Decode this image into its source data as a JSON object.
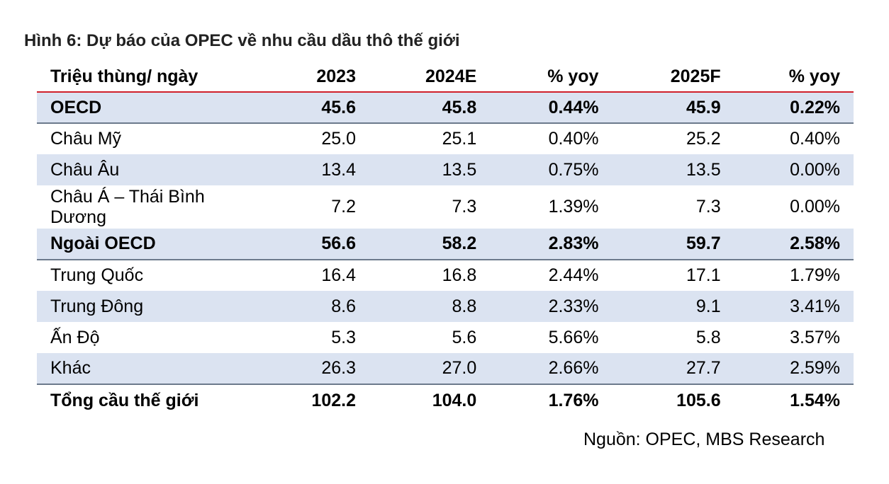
{
  "figure_title": "Hình 6: Dự báo của OPEC về nhu cầu dầu thô thế giới",
  "table": {
    "headers": [
      "Triệu thùng/ ngày",
      "2023",
      "2024E",
      "% yoy",
      "2025F",
      "% yoy"
    ],
    "rows": [
      {
        "label": "OECD",
        "values": [
          "45.6",
          "45.8",
          "0.44%",
          "45.9",
          "0.22%"
        ]
      },
      {
        "label": "Châu Mỹ",
        "values": [
          "25.0",
          "25.1",
          "0.40%",
          "25.2",
          "0.40%"
        ]
      },
      {
        "label": "Châu Âu",
        "values": [
          "13.4",
          "13.5",
          "0.75%",
          "13.5",
          "0.00%"
        ]
      },
      {
        "label_line1": "Châu Á – Thái Bình",
        "label_line2": "Dương",
        "values": [
          "7.2",
          "7.3",
          "1.39%",
          "7.3",
          "0.00%"
        ]
      },
      {
        "label": "Ngoài OECD",
        "values": [
          "56.6",
          "58.2",
          "2.83%",
          "59.7",
          "2.58%"
        ]
      },
      {
        "label": "Trung Quốc",
        "values": [
          "16.4",
          "16.8",
          "2.44%",
          "17.1",
          "1.79%"
        ]
      },
      {
        "label": "Trung Đông",
        "values": [
          "8.6",
          "8.8",
          "2.33%",
          "9.1",
          "3.41%"
        ]
      },
      {
        "label": "Ấn Độ",
        "values": [
          "5.3",
          "5.6",
          "5.66%",
          "5.8",
          "3.57%"
        ]
      },
      {
        "label": "Khác",
        "values": [
          "26.3",
          "27.0",
          "2.66%",
          "27.7",
          "2.59%"
        ]
      },
      {
        "label": "Tổng cầu thế giới",
        "values": [
          "102.2",
          "104.0",
          "1.76%",
          "105.6",
          "1.54%"
        ]
      }
    ]
  },
  "source": "Nguồn: OPEC, MBS Research",
  "colors": {
    "header_rule": "#d0202a",
    "row_shade": "#dbe3f1",
    "group_rule": "#6c7a8c"
  }
}
